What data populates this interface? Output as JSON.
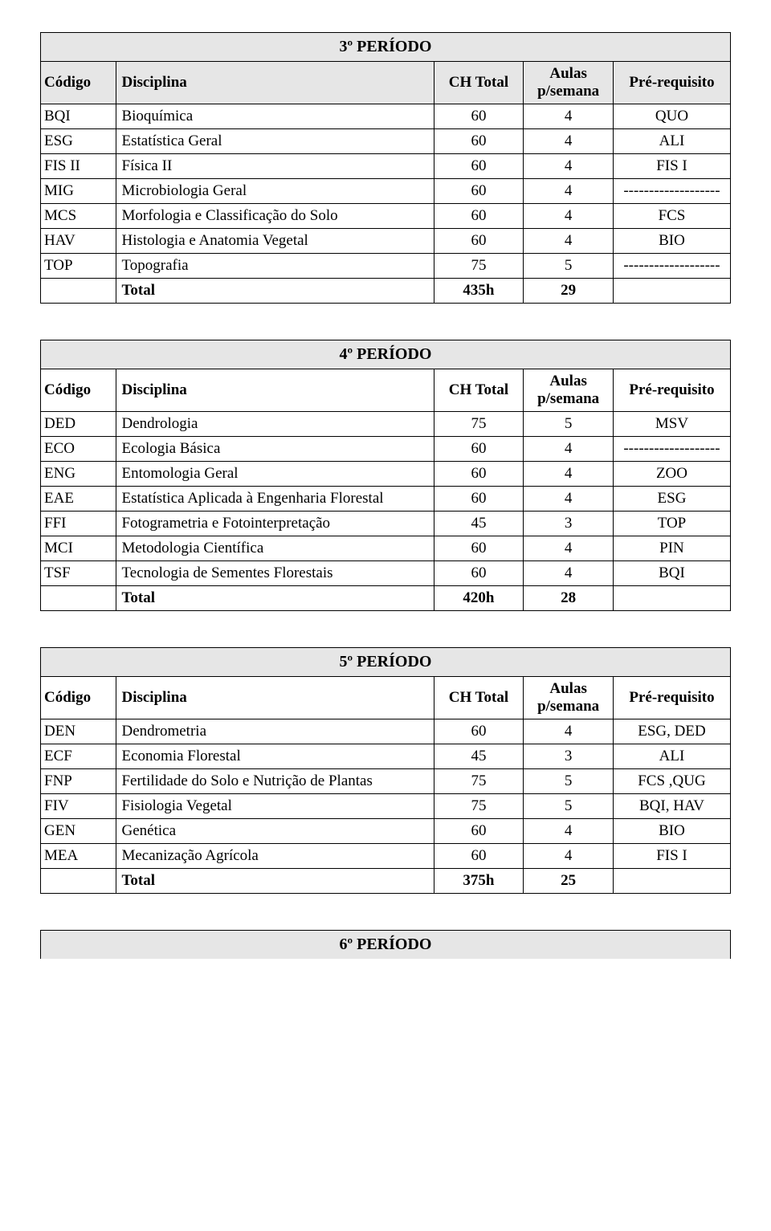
{
  "headers": {
    "codigo": "Código",
    "disciplina": "Disciplina",
    "ch_total": "CH Total",
    "aulas": "Aulas p/semana",
    "pre": "Pré-requisito",
    "total": "Total"
  },
  "periods": [
    {
      "title": "3º PERÍODO",
      "header_bg": "shaded",
      "rows": [
        {
          "code": "BQI",
          "disc": "Bioquímica",
          "ch": "60",
          "aulas": "4",
          "pre": "QUO"
        },
        {
          "code": "ESG",
          "disc": "Estatística Geral",
          "ch": "60",
          "aulas": "4",
          "pre": "ALI"
        },
        {
          "code": "FIS II",
          "disc": "Física II",
          "ch": "60",
          "aulas": "4",
          "pre": "FIS I"
        },
        {
          "code": "MIG",
          "disc": "Microbiologia Geral",
          "ch": "60",
          "aulas": "4",
          "pre": "-------------------"
        },
        {
          "code": "MCS",
          "disc": "Morfologia e Classificação do Solo",
          "ch": "60",
          "aulas": "4",
          "pre": "FCS"
        },
        {
          "code": "HAV",
          "disc": "Histologia e Anatomia Vegetal",
          "ch": "60",
          "aulas": "4",
          "pre": "BIO"
        },
        {
          "code": "TOP",
          "disc": "Topografia",
          "ch": "75",
          "aulas": "5",
          "pre": "-------------------"
        }
      ],
      "total": {
        "ch": "435h",
        "aulas": "29"
      }
    },
    {
      "title": "4º PERÍODO",
      "header_bg": "plain",
      "rows": [
        {
          "code": "DED",
          "disc": "Dendrologia",
          "ch": "75",
          "aulas": "5",
          "pre": "MSV"
        },
        {
          "code": "ECO",
          "disc": "Ecologia Básica",
          "ch": "60",
          "aulas": "4",
          "pre": "-------------------"
        },
        {
          "code": "ENG",
          "disc": "Entomologia Geral",
          "ch": "60",
          "aulas": "4",
          "pre": "ZOO"
        },
        {
          "code": "EAE",
          "disc": "Estatística Aplicada à Engenharia Florestal",
          "ch": "60",
          "aulas": "4",
          "pre": "ESG"
        },
        {
          "code": "FFI",
          "disc": "Fotogrametria e Fotointerpretação",
          "ch": "45",
          "aulas": "3",
          "pre": "TOP"
        },
        {
          "code": "MCI",
          "disc": "Metodologia Científica",
          "ch": "60",
          "aulas": "4",
          "pre": "PIN"
        },
        {
          "code": "TSF",
          "disc": "Tecnologia de Sementes Florestais",
          "ch": "60",
          "aulas": "4",
          "pre": "BQI"
        }
      ],
      "total": {
        "ch": "420h",
        "aulas": "28"
      }
    },
    {
      "title": "5º PERÍODO",
      "header_bg": "plain",
      "rows": [
        {
          "code": "DEN",
          "disc": "Dendrometria",
          "ch": "60",
          "aulas": "4",
          "pre": "ESG, DED"
        },
        {
          "code": "ECF",
          "disc": "Economia Florestal",
          "ch": "45",
          "aulas": "3",
          "pre": "ALI"
        },
        {
          "code": "FNP",
          "disc": "Fertilidade do Solo e Nutrição de Plantas",
          "ch": "75",
          "aulas": "5",
          "pre": "FCS ,QUG"
        },
        {
          "code": "FIV",
          "disc": "Fisiologia Vegetal",
          "ch": "75",
          "aulas": "5",
          "pre": "BQI, HAV"
        },
        {
          "code": "GEN",
          "disc": "Genética",
          "ch": "60",
          "aulas": "4",
          "pre": "BIO"
        },
        {
          "code": "MEA",
          "disc": "Mecanização Agrícola",
          "ch": "60",
          "aulas": "4",
          "pre": "FIS I"
        }
      ],
      "total": {
        "ch": "375h",
        "aulas": "25"
      }
    }
  ],
  "period6_title": "6º PERÍODO",
  "styles": {
    "shaded_bg": "#e6e6e6",
    "text_color": "#000000",
    "font_family": "Times New Roman",
    "border_color": "#000000"
  }
}
